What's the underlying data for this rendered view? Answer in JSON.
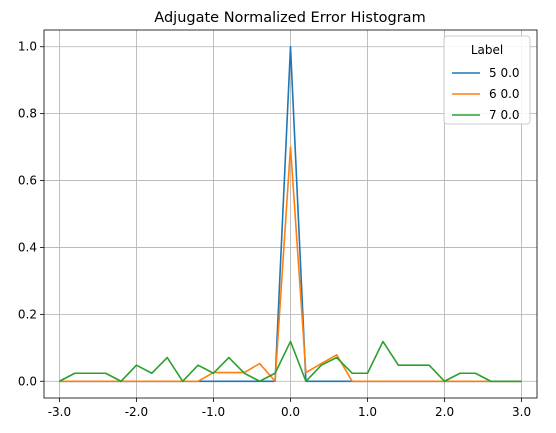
{
  "chart_data": {
    "type": "line",
    "title": "Adjugate Normalized Error Histogram",
    "xlabel": "",
    "ylabel": "",
    "xlim": [
      -3.2,
      3.2
    ],
    "ylim": [
      -0.05,
      1.05
    ],
    "xticks": [
      -3.0,
      -2.0,
      -1.0,
      0.0,
      1.0,
      2.0,
      3.0
    ],
    "xtick_labels": [
      "-3.0",
      "-2.0",
      "-1.0",
      "0.0",
      "1.0",
      "2.0",
      "3.0"
    ],
    "yticks": [
      0.0,
      0.2,
      0.4,
      0.6,
      0.8,
      1.0
    ],
    "ytick_labels": [
      "0.0",
      "0.2",
      "0.4",
      "0.6",
      "0.8",
      "1.0"
    ],
    "grid": true,
    "legend": {
      "title": "Label",
      "placement": "top-right"
    },
    "x": [
      -3.0,
      -2.8,
      -2.6,
      -2.4,
      -2.2,
      -2.0,
      -1.8,
      -1.6,
      -1.4,
      -1.2,
      -1.0,
      -0.8,
      -0.6,
      -0.4,
      -0.2,
      0.0,
      0.2,
      0.4,
      0.6,
      0.8,
      1.0,
      1.2,
      1.4,
      1.6,
      1.8,
      2.0,
      2.2,
      2.4,
      2.6,
      2.8,
      3.0
    ],
    "series": [
      {
        "name": "5 0.0",
        "color": "#1f77b4",
        "values": [
          0,
          0,
          0,
          0,
          0,
          0,
          0,
          0,
          0,
          0,
          0,
          0,
          0,
          0,
          0,
          1.0,
          0,
          0,
          0,
          0,
          0,
          0,
          0,
          0,
          0,
          0,
          0,
          0,
          0,
          0,
          0
        ]
      },
      {
        "name": "6 0.0",
        "color": "#ff7f0e",
        "values": [
          0,
          0,
          0,
          0,
          0,
          0,
          0,
          0,
          0,
          0,
          0.026,
          0.026,
          0.026,
          0.053,
          0,
          0.7,
          0.026,
          0.053,
          0.079,
          0,
          0,
          0,
          0,
          0,
          0,
          0,
          0,
          0,
          0,
          0,
          0
        ]
      },
      {
        "name": "7 0.0",
        "color": "#2ca02c",
        "values": [
          0,
          0.024,
          0.024,
          0.024,
          0,
          0.048,
          0.024,
          0.071,
          0,
          0.048,
          0.024,
          0.071,
          0.024,
          0,
          0.024,
          0.119,
          0,
          0.048,
          0.071,
          0.024,
          0.024,
          0.119,
          0.048,
          0.048,
          0.048,
          0,
          0.024,
          0.024,
          0,
          0,
          0
        ]
      }
    ]
  }
}
